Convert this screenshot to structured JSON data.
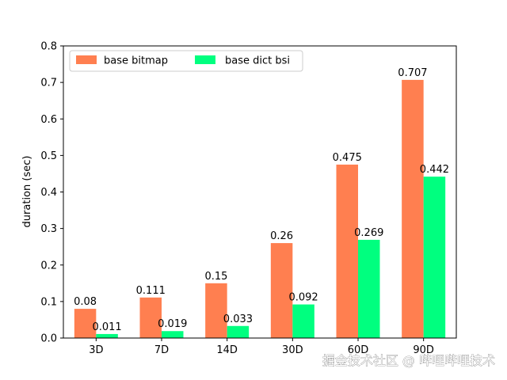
{
  "chart_data": {
    "type": "bar",
    "categories": [
      "3D",
      "7D",
      "14D",
      "30D",
      "60D",
      "90D"
    ],
    "series": [
      {
        "name": "base bitmap",
        "values": [
          0.08,
          0.111,
          0.15,
          0.26,
          0.475,
          0.707
        ],
        "labels": [
          "0.08",
          "0.111",
          "0.15",
          "0.26",
          "0.475",
          "0.707"
        ],
        "color": "#ff7f50"
      },
      {
        "name": "base dict bsi",
        "values": [
          0.011,
          0.019,
          0.033,
          0.092,
          0.269,
          0.442
        ],
        "labels": [
          "0.011",
          "0.019",
          "0.033",
          "0.092",
          "0.269",
          "0.442"
        ],
        "color": "#00ff7f"
      }
    ],
    "title": "",
    "xlabel": "",
    "ylabel": "duration (sec)",
    "ylim": [
      0,
      0.8
    ],
    "yticks": [
      0.0,
      0.1,
      0.2,
      0.3,
      0.4,
      0.5,
      0.6,
      0.7,
      0.8
    ],
    "ytick_labels": [
      "0.0",
      "0.1",
      "0.2",
      "0.3",
      "0.4",
      "0.5",
      "0.6",
      "0.7",
      "0.8"
    ],
    "grid": false,
    "legend_position": "top-left"
  },
  "watermark": "掘金技术社区 @ 哔哩哔哩技术"
}
